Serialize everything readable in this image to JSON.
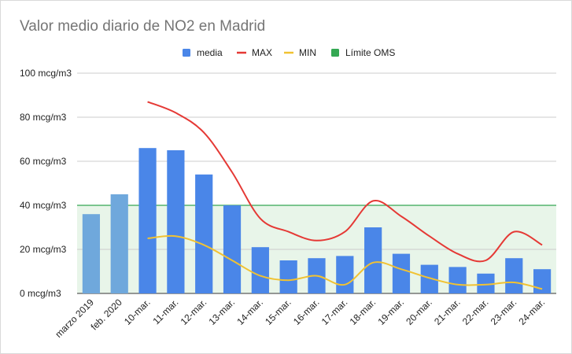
{
  "chart_data": {
    "type": "bar",
    "title": "Valor medio diario de NO2 en Madrid",
    "categories": [
      "marzo 2019",
      "feb. 2020",
      "10-mar.",
      "11-mar.",
      "12-mar.",
      "13-mar.",
      "14-mar.",
      "15-mar.",
      "16-mar.",
      "17-mar.",
      "18-mar.",
      "19-mar.",
      "20-mar.",
      "21-mar.",
      "22-mar.",
      "23-mar.",
      "24-mar."
    ],
    "series": [
      {
        "name": "media",
        "type": "bar",
        "color": "#4a86e8",
        "highlight_color": "#6fa8dc",
        "highlight_categories": [
          "marzo 2019",
          "feb. 2020"
        ],
        "values": [
          36,
          45,
          66,
          65,
          54,
          40,
          21,
          15,
          16,
          17,
          30,
          18,
          13,
          12,
          9,
          16,
          11
        ]
      },
      {
        "name": "MAX",
        "type": "line",
        "color": "#e53935",
        "values": [
          null,
          null,
          87,
          82,
          73,
          55,
          34,
          28,
          24,
          28,
          42,
          35,
          26,
          18,
          15,
          28,
          22
        ]
      },
      {
        "name": "MIN",
        "type": "line",
        "color": "#f1c232",
        "values": [
          null,
          null,
          25,
          26,
          22,
          15,
          8,
          6,
          8,
          4,
          14,
          11,
          7,
          4,
          4,
          5,
          2
        ]
      },
      {
        "name": "Límite OMS",
        "type": "area",
        "color": "#34a853",
        "fill": "#e8f5e9",
        "value": 40
      }
    ],
    "y_ticks": [
      "0 mcg/m3",
      "20 mcg/m3",
      "40 mcg/m3",
      "60 mcg/m3",
      "80 mcg/m3",
      "100 mcg/m3"
    ],
    "ylim": [
      0,
      100
    ],
    "grid": true,
    "legend_position": "top"
  }
}
